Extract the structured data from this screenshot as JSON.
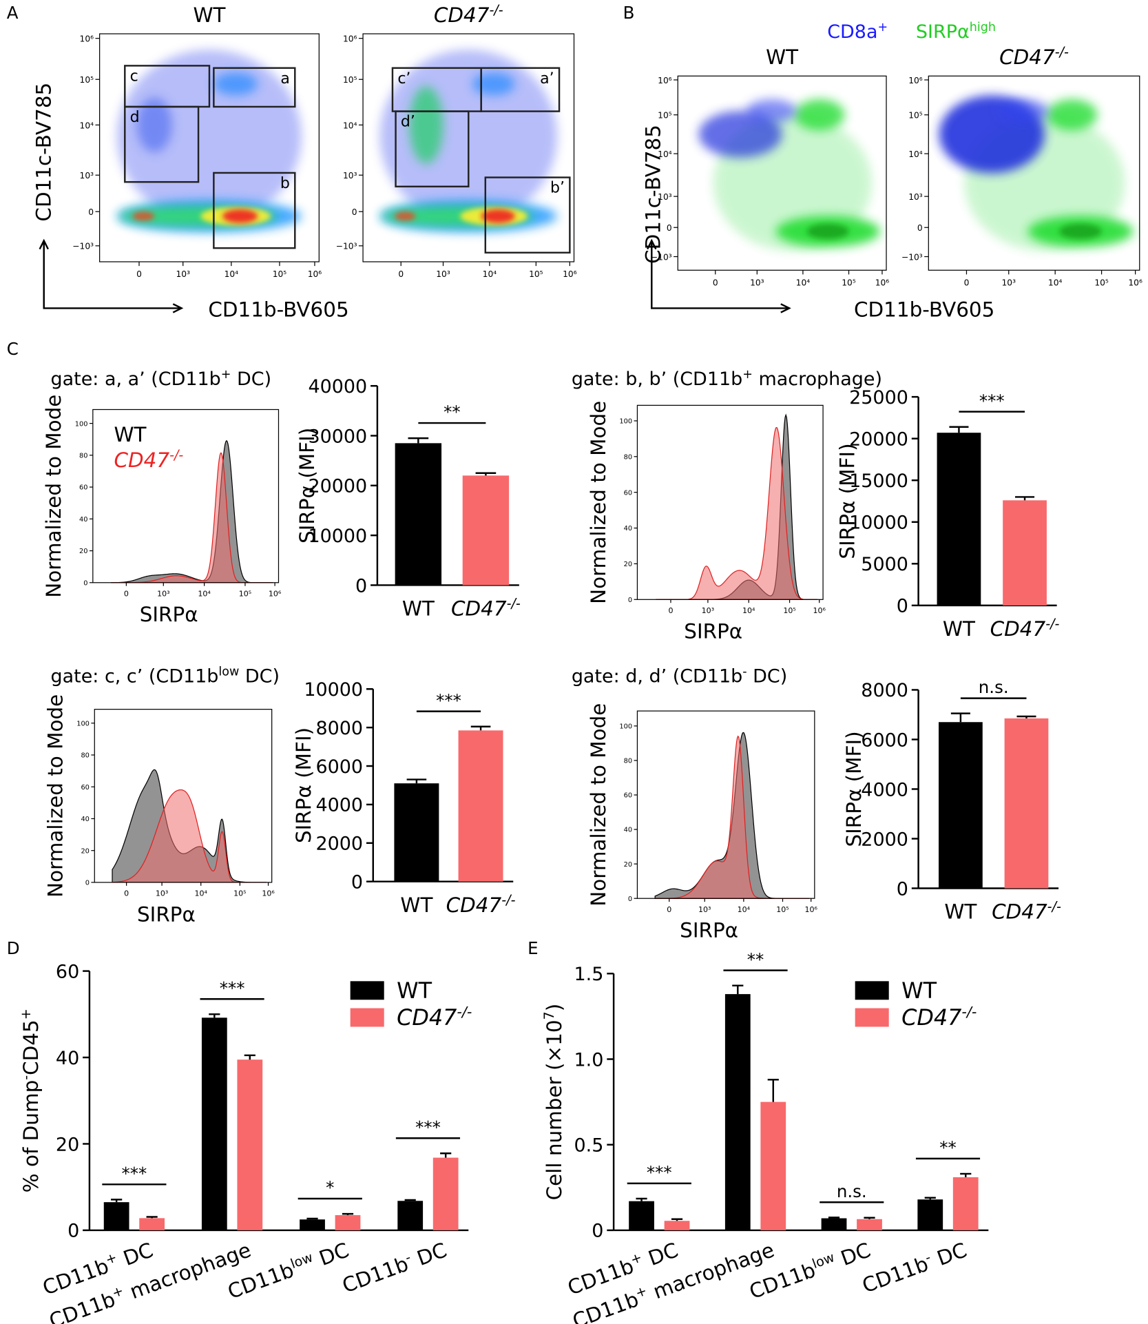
{
  "panel_labels": [
    "A",
    "B",
    "C",
    "D",
    "E"
  ],
  "flow": {
    "wt": [
      {
        "t": "WT"
      }
    ],
    "ko": [
      {
        "t": "CD47",
        "i": true
      },
      {
        "t": "-/-",
        "sup": true,
        "i": true
      }
    ],
    "ylabel": "CD11c-BV785",
    "xlabel": "CD11b-BV605",
    "gates_wt": [
      "a",
      "b",
      "c",
      "d"
    ],
    "gates_ko": [
      "a’",
      "b’",
      "c’",
      "d’"
    ],
    "yticks": [
      "10⁶",
      "10⁵",
      "10⁴",
      "10³",
      "0",
      "−10³"
    ],
    "xticks": [
      "0",
      "10³",
      "10⁴",
      "10⁵",
      "10⁶"
    ],
    "legend_b": [
      {
        "parts": [
          {
            "t": "CD8a"
          },
          {
            "t": "+",
            "sup": true
          }
        ],
        "color": "#1a1aff"
      },
      {
        "parts": [
          {
            "t": "SIRPα"
          },
          {
            "t": "high",
            "sup": true
          }
        ],
        "color": "#22cc22"
      }
    ]
  },
  "hist": {
    "ylabel": "Normalized to Mode",
    "xlabel": "SIRPα",
    "yticks": [
      "0",
      "20",
      "40",
      "60",
      "80",
      "100"
    ],
    "xticks": [
      "0",
      "10³",
      "10⁴",
      "10⁵",
      "10⁶"
    ],
    "legend": [
      [
        {
          "t": "WT"
        }
      ],
      [
        {
          "t": "CD47",
          "i": true
        },
        {
          "t": "-/-",
          "sup": true,
          "i": true
        }
      ]
    ],
    "legend_colors": [
      "#000000",
      "#ee2222"
    ]
  },
  "chart_data": [
    {
      "type": "bar",
      "title": [
        {
          "t": "gate: a, a’ (CD11b"
        },
        {
          "t": "+",
          "sup": true
        },
        {
          "t": " DC)"
        }
      ],
      "ylabel": [
        {
          "t": "SIRPα (MFI)"
        }
      ],
      "categories": [
        [
          {
            "t": "WT"
          }
        ],
        [
          {
            "t": "CD47",
            "i": true
          },
          {
            "t": "-/-",
            "sup": true,
            "i": true
          }
        ]
      ],
      "values": [
        28500,
        22000
      ],
      "errors": [
        1000,
        500
      ],
      "colors": [
        "#000000",
        "#f8696b"
      ],
      "ylim": [
        0,
        40000
      ],
      "yticks": [
        0,
        10000,
        20000,
        30000,
        40000
      ],
      "significance": "**"
    },
    {
      "type": "bar",
      "title": [
        {
          "t": "gate: b, b’ (CD11b"
        },
        {
          "t": "+",
          "sup": true
        },
        {
          "t": " macrophage)"
        }
      ],
      "ylabel": [
        {
          "t": "SIRPα (MFI)"
        }
      ],
      "categories": [
        [
          {
            "t": "WT"
          }
        ],
        [
          {
            "t": "CD47",
            "i": true
          },
          {
            "t": "-/-",
            "sup": true,
            "i": true
          }
        ]
      ],
      "values": [
        20700,
        12600
      ],
      "errors": [
        700,
        400
      ],
      "colors": [
        "#000000",
        "#f8696b"
      ],
      "ylim": [
        0,
        25000
      ],
      "yticks": [
        0,
        5000,
        10000,
        15000,
        20000,
        25000
      ],
      "significance": "***"
    },
    {
      "type": "bar",
      "title": [
        {
          "t": "gate: c, c’ (CD11b"
        },
        {
          "t": "low",
          "sup": true
        },
        {
          "t": " DC)"
        }
      ],
      "ylabel": [
        {
          "t": "SIRPα (MFI)"
        }
      ],
      "categories": [
        [
          {
            "t": "WT"
          }
        ],
        [
          {
            "t": "CD47",
            "i": true
          },
          {
            "t": "-/-",
            "sup": true,
            "i": true
          }
        ]
      ],
      "values": [
        5100,
        7850
      ],
      "errors": [
        200,
        200
      ],
      "colors": [
        "#000000",
        "#f8696b"
      ],
      "ylim": [
        0,
        10000
      ],
      "yticks": [
        0,
        2000,
        4000,
        6000,
        8000,
        10000
      ],
      "significance": "***"
    },
    {
      "type": "bar",
      "title": [
        {
          "t": "gate: d, d’ (CD11b"
        },
        {
          "t": "-",
          "sup": true
        },
        {
          "t": " DC)"
        }
      ],
      "ylabel": [
        {
          "t": "SIRPα (MFI)"
        }
      ],
      "categories": [
        [
          {
            "t": "WT"
          }
        ],
        [
          {
            "t": "CD47",
            "i": true
          },
          {
            "t": "-/-",
            "sup": true,
            "i": true
          }
        ]
      ],
      "values": [
        6700,
        6850
      ],
      "errors": [
        350,
        80
      ],
      "colors": [
        "#000000",
        "#f8696b"
      ],
      "ylim": [
        0,
        8000
      ],
      "yticks": [
        0,
        2000,
        4000,
        6000,
        8000
      ],
      "significance": "n.s."
    },
    {
      "type": "grouped_bar",
      "ylabel": [
        {
          "t": "% of Dump"
        },
        {
          "t": "-",
          "sup": true
        },
        {
          "t": "CD45"
        },
        {
          "t": "+",
          "sup": true
        }
      ],
      "categories": [
        [
          {
            "t": "CD11b"
          },
          {
            "t": "+",
            "sup": true
          },
          {
            "t": " DC"
          }
        ],
        [
          {
            "t": "CD11b"
          },
          {
            "t": "+",
            "sup": true
          },
          {
            "t": " macrophage"
          }
        ],
        [
          {
            "t": "CD11b"
          },
          {
            "t": "low",
            "sup": true
          },
          {
            "t": " DC"
          }
        ],
        [
          {
            "t": "CD11b"
          },
          {
            "t": "-",
            "sup": true
          },
          {
            "t": " DC"
          }
        ]
      ],
      "series": [
        {
          "name": [
            {
              "t": "WT"
            }
          ],
          "color": "#000000",
          "values": [
            6.5,
            49.2,
            2.5,
            6.8
          ],
          "errors": [
            0.6,
            0.8,
            0.2,
            0.2
          ]
        },
        {
          "name": [
            {
              "t": "CD47",
              "i": true
            },
            {
              "t": "-/-",
              "sup": true,
              "i": true
            }
          ],
          "color": "#f8696b",
          "values": [
            2.8,
            39.5,
            3.5,
            16.8
          ],
          "errors": [
            0.3,
            1.0,
            0.3,
            1.0
          ]
        }
      ],
      "ylim": [
        0,
        60
      ],
      "yticks": [
        0,
        20,
        40,
        60
      ],
      "significance": [
        "***",
        "***",
        "*",
        "***"
      ]
    },
    {
      "type": "grouped_bar",
      "ylabel": [
        {
          "t": "Cell number (×10"
        },
        {
          "t": "7",
          "sup": true
        },
        {
          "t": ")"
        }
      ],
      "categories": [
        [
          {
            "t": "CD11b"
          },
          {
            "t": "+",
            "sup": true
          },
          {
            "t": " DC"
          }
        ],
        [
          {
            "t": "CD11b"
          },
          {
            "t": "+",
            "sup": true
          },
          {
            "t": " macrophage"
          }
        ],
        [
          {
            "t": "CD11b"
          },
          {
            "t": "low",
            "sup": true
          },
          {
            "t": " DC"
          }
        ],
        [
          {
            "t": "CD11b"
          },
          {
            "t": "-",
            "sup": true
          },
          {
            "t": " DC"
          }
        ]
      ],
      "series": [
        {
          "name": [
            {
              "t": "WT"
            }
          ],
          "color": "#000000",
          "values": [
            0.17,
            1.38,
            0.07,
            0.18
          ],
          "errors": [
            0.015,
            0.05,
            0.005,
            0.01
          ]
        },
        {
          "name": [
            {
              "t": "CD47",
              "i": true
            },
            {
              "t": "-/-",
              "sup": true,
              "i": true
            }
          ],
          "color": "#f8696b",
          "values": [
            0.055,
            0.75,
            0.065,
            0.31
          ],
          "errors": [
            0.01,
            0.13,
            0.008,
            0.02
          ]
        }
      ],
      "ylim": [
        0,
        1.5
      ],
      "yticks": [
        0,
        0.5,
        {
          "value": 1,
          "label": "1.0"
        },
        1.5
      ],
      "significance": [
        "***",
        "**",
        "n.s.",
        "**"
      ]
    }
  ]
}
